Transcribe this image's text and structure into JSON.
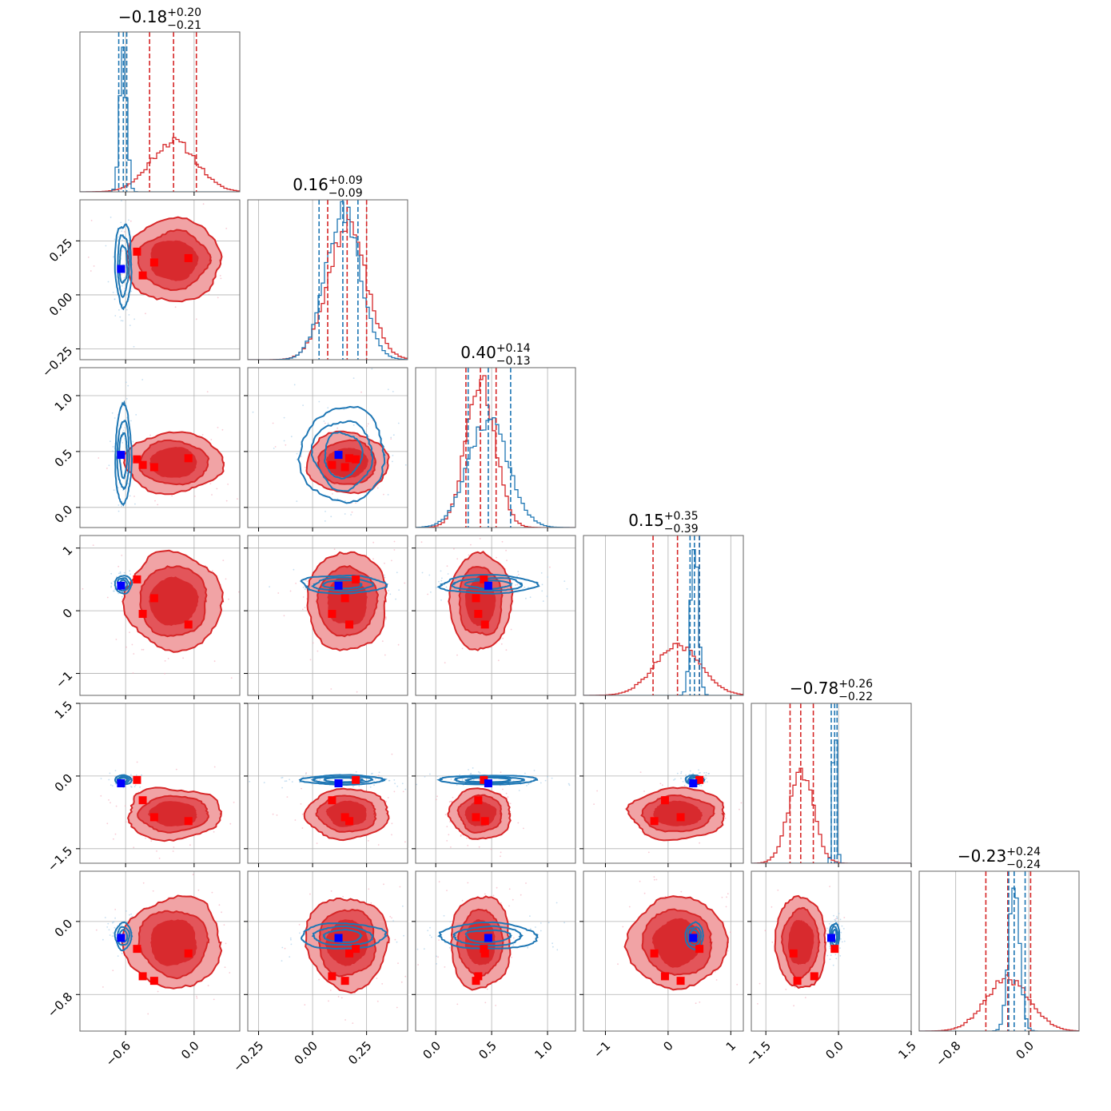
{
  "chart_data": {
    "type": "corner",
    "colors": {
      "series_a": "#d62728",
      "series_b": "#1f77b4",
      "truth_a": "#ff0000",
      "truth_b": "#0000ff",
      "grid": "#b0b0b0"
    },
    "titles": [
      {
        "median": "−0.18",
        "plus": "+0.20",
        "minus": "−0.21"
      },
      {
        "median": "0.16",
        "plus": "+0.09",
        "minus": "−0.09"
      },
      {
        "median": "0.40",
        "plus": "+0.14",
        "minus": "−0.13"
      },
      {
        "median": "0.15",
        "plus": "+0.35",
        "minus": "−0.39"
      },
      {
        "median": "−0.78",
        "plus": "+0.26",
        "minus": "−0.22"
      },
      {
        "median": "−0.23",
        "plus": "+0.24",
        "minus": "−0.24"
      }
    ],
    "params": [
      {
        "range": [
          -1.0,
          0.4
        ],
        "ticks": [
          -0.6,
          0.0
        ],
        "tick_labels": [
          "−0.6",
          "0.0"
        ],
        "red": {
          "mean": -0.18,
          "sd": 0.2,
          "q": [
            -0.39,
            -0.18,
            0.02
          ]
        },
        "blue": {
          "mean": -0.62,
          "sd": 0.03,
          "q": [
            -0.66,
            -0.62,
            -0.59
          ]
        }
      },
      {
        "range": [
          -0.3,
          0.44
        ],
        "ticks": [
          -0.25,
          0.0,
          0.25
        ],
        "tick_labels": [
          "−0.25",
          "0.00",
          "0.25"
        ],
        "red": {
          "mean": 0.16,
          "sd": 0.09,
          "q": [
            0.07,
            0.16,
            0.25
          ]
        },
        "blue": {
          "mean": 0.14,
          "sd": 0.08,
          "q": [
            0.03,
            0.14,
            0.21
          ]
        }
      },
      {
        "range": [
          -0.18,
          1.25
        ],
        "ticks": [
          0.0,
          0.5,
          1.0
        ],
        "tick_labels": [
          "0.0",
          "0.5",
          "1.0"
        ],
        "red": {
          "mean": 0.4,
          "sd": 0.13,
          "q": [
            0.27,
            0.4,
            0.54
          ]
        },
        "blue": {
          "mean": 0.47,
          "sd": 0.18,
          "q": [
            0.29,
            0.47,
            0.67
          ]
        }
      },
      {
        "range": [
          -1.35,
          1.2
        ],
        "ticks": [
          -1,
          0,
          1
        ],
        "tick_labels": [
          "−1",
          "0",
          "1"
        ],
        "red": {
          "mean": 0.15,
          "sd": 0.37,
          "q": [
            -0.24,
            0.15,
            0.5
          ]
        },
        "blue": {
          "mean": 0.42,
          "sd": 0.06,
          "q": [
            0.35,
            0.42,
            0.5
          ]
        }
      },
      {
        "range": [
          -1.8,
          1.5
        ],
        "ticks": [
          -1.5,
          0.0,
          1.5
        ],
        "tick_labels": [
          "−1.5",
          "0.0",
          "1.5"
        ],
        "red": {
          "mean": -0.78,
          "sd": 0.25,
          "q": [
            -1.0,
            -0.78,
            -0.52
          ]
        },
        "blue": {
          "mean": -0.08,
          "sd": 0.04,
          "q": [
            -0.15,
            -0.08,
            -0.03
          ]
        }
      },
      {
        "range": [
          -1.2,
          0.55
        ],
        "ticks": [
          -0.8,
          0.0
        ],
        "tick_labels": [
          "−0.8",
          "0.0"
        ],
        "red": {
          "mean": -0.23,
          "sd": 0.24,
          "q": [
            -0.47,
            -0.23,
            0.02
          ]
        },
        "blue": {
          "mean": -0.16,
          "sd": 0.06,
          "q": [
            -0.22,
            -0.16,
            -0.04
          ]
        }
      }
    ],
    "truth_points_red": [
      [
        -0.5,
        0.2,
        0.43,
        0.5,
        -0.08,
        -0.3
      ],
      [
        -0.35,
        0.15,
        0.36,
        0.2,
        -0.85,
        -0.65
      ],
      [
        -0.05,
        0.17,
        0.44,
        -0.22,
        -0.93,
        -0.35
      ],
      [
        -0.45,
        0.09,
        0.38,
        -0.05,
        -0.5,
        -0.6
      ]
    ],
    "truth_point_blue": [
      -0.64,
      0.12,
      0.47,
      0.4,
      -0.15,
      -0.18
    ],
    "grid": true
  }
}
